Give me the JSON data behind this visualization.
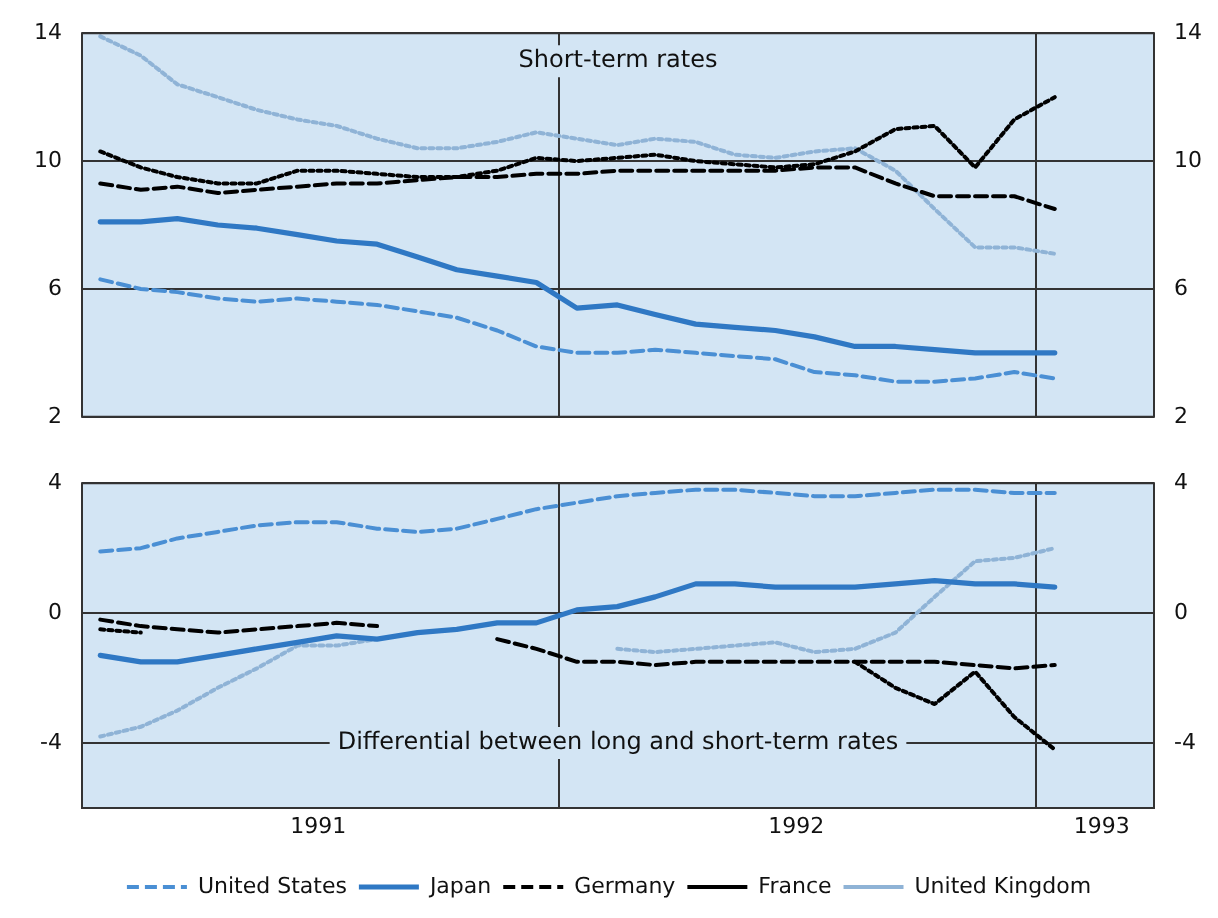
{
  "chart_data": [
    {
      "type": "line",
      "title": "Short-term rates",
      "x": [
        "1991-01-15",
        "1991-02-15",
        "1991-03-15",
        "1991-04-15",
        "1991-05-15",
        "1991-06-15",
        "1991-07-15",
        "1991-08-15",
        "1991-09-15",
        "1991-10-15",
        "1991-11-15",
        "1991-12-15",
        "1992-01-15",
        "1992-02-15",
        "1992-03-15",
        "1992-04-15",
        "1992-05-15",
        "1992-06-15",
        "1992-07-15",
        "1992-08-15",
        "1992-09-15",
        "1992-10-15",
        "1992-11-15",
        "1992-12-15",
        "1993-01-15"
      ],
      "series": [
        {
          "color": "#4a8fd4",
          "line_style": "dashed",
          "values": [
            6.3,
            6.0,
            5.9,
            5.7,
            5.6,
            5.7,
            5.6,
            5.5,
            5.3,
            5.1,
            4.7,
            4.2,
            4.0,
            4.0,
            4.1,
            4.0,
            3.9,
            3.8,
            3.4,
            3.3,
            3.1,
            3.1,
            3.2,
            3.4,
            3.2
          ]
        },
        {
          "color": "#2f78c4",
          "line_style": "solid",
          "values": [
            8.1,
            8.1,
            8.2,
            8.0,
            7.9,
            7.7,
            7.5,
            7.4,
            7.0,
            6.6,
            6.4,
            6.2,
            5.4,
            5.5,
            5.2,
            4.9,
            4.8,
            4.7,
            4.5,
            4.2,
            4.2,
            4.1,
            4.0,
            4.0,
            4.0
          ]
        },
        {
          "color": "#000000",
          "line_style": "dashed",
          "values": [
            9.3,
            9.1,
            9.2,
            9.0,
            9.1,
            9.2,
            9.3,
            9.3,
            9.4,
            9.5,
            9.5,
            9.6,
            9.6,
            9.7,
            9.7,
            9.7,
            9.7,
            9.7,
            9.8,
            9.8,
            9.3,
            8.9,
            8.9,
            8.9,
            8.5
          ]
        },
        {
          "color": "#000000",
          "line_style": "dotted",
          "values": [
            10.3,
            9.8,
            9.5,
            9.3,
            9.3,
            9.7,
            9.7,
            9.6,
            9.5,
            9.5,
            9.7,
            10.1,
            10.0,
            10.1,
            10.2,
            10.0,
            9.9,
            9.8,
            9.9,
            10.3,
            11.0,
            11.1,
            9.8,
            11.3,
            12.0
          ]
        },
        {
          "color": "#8fb3d6",
          "line_style": "dotted",
          "values": [
            13.9,
            13.3,
            12.4,
            12.0,
            11.6,
            11.3,
            11.1,
            10.7,
            10.4,
            10.4,
            10.6,
            10.9,
            10.7,
            10.5,
            10.7,
            10.6,
            10.2,
            10.1,
            10.3,
            10.4,
            9.7,
            8.5,
            7.3,
            7.3,
            7.1
          ]
        }
      ],
      "xlim": [
        "1991-01-01",
        "1993-04-01"
      ],
      "xticks": [
        {
          "value": "1992-01-01",
          "label": null
        },
        {
          "value": "1993-01-01",
          "label": null
        }
      ],
      "ylim": [
        2,
        14
      ],
      "yticks": [
        2,
        6,
        10,
        14
      ],
      "y2lim": [
        2,
        14
      ],
      "y2ticks": [
        2,
        6,
        10,
        14
      ],
      "tick_labels": "y",
      "grid": true,
      "marker": "none",
      "legend": false
    },
    {
      "type": "line",
      "title": "Differential between long and short-term rates",
      "x": [
        "1991-01-15",
        "1991-02-15",
        "1991-03-15",
        "1991-04-15",
        "1991-05-15",
        "1991-06-15",
        "1991-07-15",
        "1991-08-15",
        "1991-09-15",
        "1991-10-15",
        "1991-11-15",
        "1991-12-15",
        "1992-01-15",
        "1992-02-15",
        "1992-03-15",
        "1992-04-15",
        "1992-05-15",
        "1992-06-15",
        "1992-07-15",
        "1992-08-15",
        "1992-09-15",
        "1992-10-15",
        "1992-11-15",
        "1992-12-15",
        "1993-01-15"
      ],
      "series": [
        {
          "name": "United States",
          "color": "#4a8fd4",
          "line_style": "dashed",
          "values": [
            1.9,
            2.0,
            2.3,
            2.5,
            2.7,
            2.8,
            2.8,
            2.6,
            2.5,
            2.6,
            2.9,
            3.2,
            3.4,
            3.6,
            3.7,
            3.8,
            3.8,
            3.7,
            3.6,
            3.6,
            3.7,
            3.8,
            3.8,
            3.7,
            3.7
          ]
        },
        {
          "name": "Japan",
          "color": "#2f78c4",
          "line_style": "solid",
          "values": [
            -1.3,
            -1.5,
            -1.5,
            -1.3,
            -1.1,
            -0.9,
            -0.7,
            -0.8,
            -0.6,
            -0.5,
            -0.3,
            -0.3,
            0.1,
            0.2,
            0.5,
            0.9,
            0.9,
            0.8,
            0.8,
            0.8,
            0.9,
            1.0,
            0.9,
            0.9,
            0.8
          ]
        },
        {
          "name": "Germany",
          "color": "#000000",
          "line_style": "dashed",
          "values": [
            -0.2,
            -0.4,
            -0.5,
            -0.6,
            -0.5,
            -0.4,
            -0.3,
            -0.4,
            null,
            null,
            -0.8,
            -1.1,
            -1.5,
            -1.5,
            -1.6,
            -1.5,
            -1.5,
            -1.5,
            -1.5,
            -1.5,
            -1.5,
            -1.5,
            -1.6,
            -1.7,
            -1.6
          ]
        },
        {
          "name": "France",
          "color": "#000000",
          "line_style": "dotted",
          "values": [
            -0.5,
            -0.6,
            null,
            null,
            null,
            null,
            null,
            null,
            null,
            null,
            null,
            null,
            null,
            null,
            null,
            null,
            null,
            null,
            null,
            -1.5,
            -2.3,
            -2.8,
            -1.8,
            -3.2,
            -4.2
          ]
        },
        {
          "name": "United Kingdom",
          "color": "#8fb3d6",
          "line_style": "dotted",
          "values": [
            -3.8,
            -3.5,
            -3.0,
            -2.3,
            -1.7,
            -1.0,
            -1.0,
            -0.8,
            null,
            null,
            null,
            null,
            null,
            -1.1,
            -1.2,
            -1.1,
            -1.0,
            -0.9,
            -1.2,
            -1.1,
            -0.6,
            0.5,
            1.6,
            1.7,
            2.0
          ]
        }
      ],
      "xlim": [
        "1991-01-01",
        "1993-04-01"
      ],
      "xticks": [
        {
          "value": "1991-07-01",
          "label": "1991"
        },
        {
          "value": "1992-01-01",
          "label": null
        },
        {
          "value": "1992-07-01",
          "label": "1992"
        },
        {
          "value": "1993-01-01",
          "label": null
        },
        {
          "value": "1993-02-20",
          "label": "1993"
        }
      ],
      "ylim": [
        -6,
        4
      ],
      "yticks": [
        -4,
        0,
        4
      ],
      "y2lim": [
        -6,
        4
      ],
      "y2ticks": [
        -4,
        0,
        4
      ],
      "grid": true,
      "marker": "none",
      "legend": "bottom"
    }
  ]
}
